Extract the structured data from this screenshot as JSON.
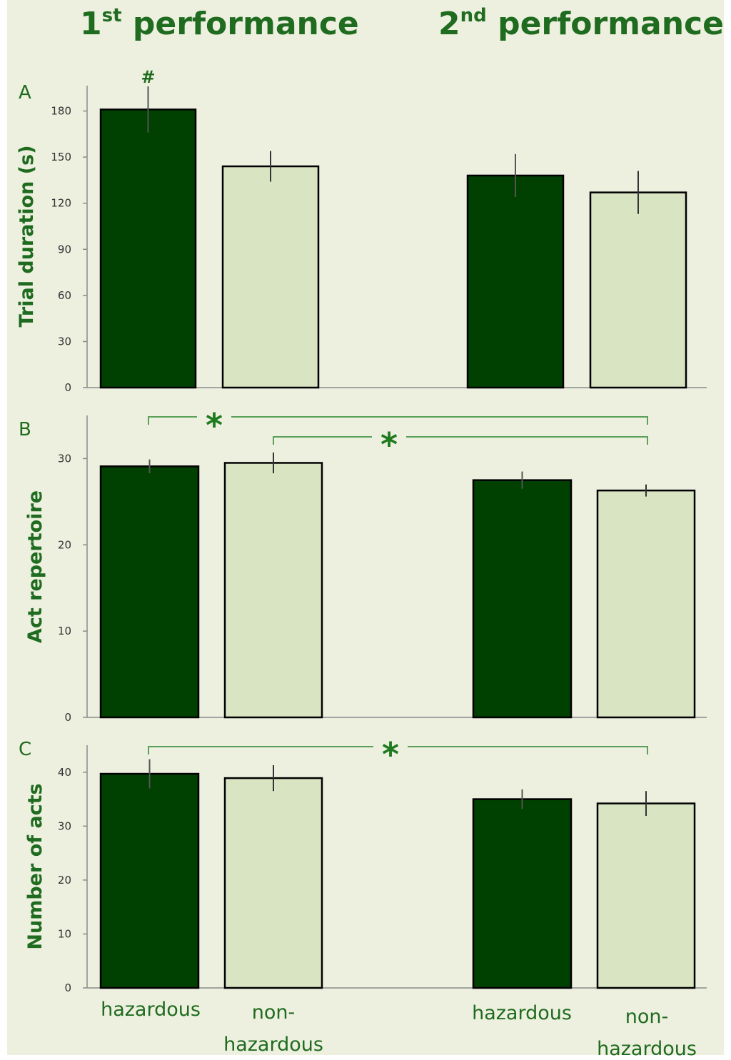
{
  "headers": {
    "first": {
      "number": "1",
      "suffix": "st",
      "text": "performance"
    },
    "second": {
      "number": "2",
      "suffix": "nd",
      "text": "performance"
    }
  },
  "categories": [
    "hazardous",
    "non-\nhazardous",
    "hazardous",
    "non-\nhazardous"
  ],
  "colors": {
    "hazardous": "#004000",
    "non_hazardous": "#d9e4c3",
    "accent": "#1f6b1f",
    "bracket": "#5aa05a"
  },
  "chart_data": [
    {
      "type": "bar",
      "panel": "A",
      "ylabel": "Trial duration (s)",
      "ylim": [
        0,
        180
      ],
      "yticks": [
        0,
        30,
        60,
        90,
        120,
        150,
        180
      ],
      "groups": [
        "1st performance",
        "2nd performance"
      ],
      "categories": [
        "hazardous",
        "non-hazardous",
        "hazardous",
        "non-hazardous"
      ],
      "values": [
        181,
        144,
        138,
        127
      ],
      "errors": [
        15,
        10,
        14,
        14
      ],
      "annotations": [
        {
          "text": "#",
          "bar_index": 0
        }
      ],
      "comparisons": []
    },
    {
      "type": "bar",
      "panel": "B",
      "ylabel": "Act repertoire",
      "ylim": [
        0,
        30
      ],
      "yticks": [
        0,
        10,
        20,
        30
      ],
      "groups": [
        "1st performance",
        "2nd performance"
      ],
      "categories": [
        "hazardous",
        "non-hazardous",
        "hazardous",
        "non-hazardous"
      ],
      "values": [
        29.1,
        29.5,
        27.5,
        26.3
      ],
      "errors": [
        0.8,
        1.2,
        1.0,
        0.7
      ],
      "annotations": [],
      "comparisons": [
        {
          "from_bar": 0,
          "to_bar": 3,
          "label": "*"
        },
        {
          "from_bar": 1,
          "to_bar": 3,
          "label": "*"
        }
      ]
    },
    {
      "type": "bar",
      "panel": "C",
      "ylabel": "Number of acts",
      "ylim": [
        0,
        40
      ],
      "yticks": [
        0,
        10,
        20,
        30,
        40
      ],
      "groups": [
        "1st performance",
        "2nd performance"
      ],
      "categories": [
        "hazardous",
        "non-hazardous",
        "hazardous",
        "non-hazardous"
      ],
      "values": [
        39.7,
        38.9,
        35.0,
        34.2
      ],
      "errors": [
        2.7,
        2.4,
        1.8,
        2.3
      ],
      "annotations": [],
      "comparisons": [
        {
          "from_bar": 0,
          "to_bar": 3,
          "label": "*"
        }
      ]
    }
  ]
}
